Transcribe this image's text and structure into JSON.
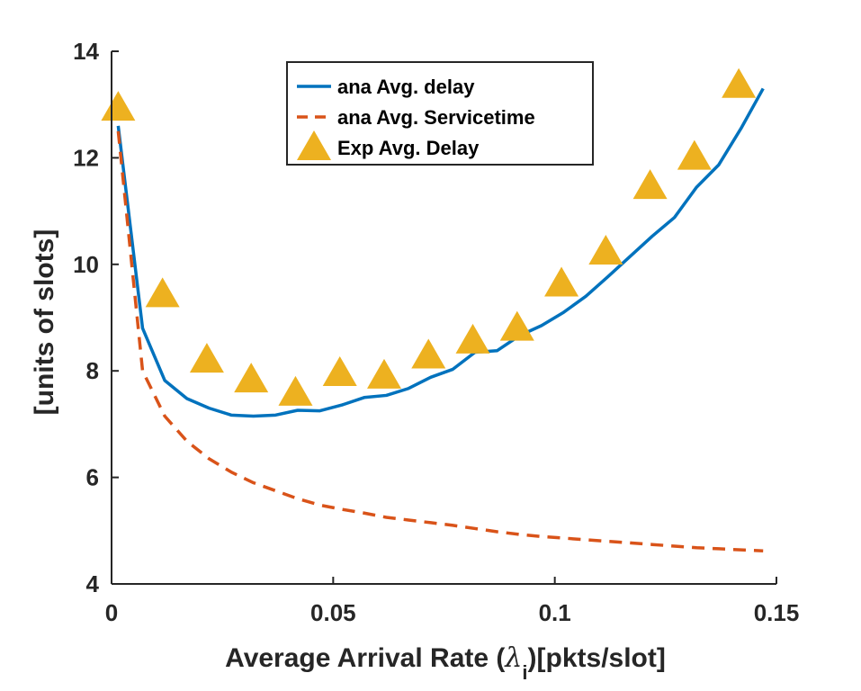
{
  "chart_data": {
    "type": "line",
    "title": "",
    "xlabel_prefix": "Average Arrival Rate (",
    "xlabel_symbol": "λ",
    "xlabel_subscript": "i",
    "xlabel_suffix": ")[pkts/slot]",
    "ylabel": "[units of slots]",
    "xlim": [
      0,
      0.15
    ],
    "ylim": [
      4,
      14
    ],
    "xticks": [
      0,
      0.05,
      0.1,
      0.15
    ],
    "xtick_labels": [
      "0",
      "0.05",
      "0.1",
      "0.15"
    ],
    "yticks": [
      4,
      6,
      8,
      10,
      12,
      14
    ],
    "ytick_labels": [
      "4",
      "6",
      "8",
      "10",
      "12",
      "14"
    ],
    "grid": false,
    "legend_position": "top-center",
    "series": [
      {
        "name": "ana Avg. delay",
        "style": "solid",
        "color": "#0072BD",
        "x": [
          0.0015,
          0.007,
          0.012,
          0.017,
          0.022,
          0.027,
          0.032,
          0.037,
          0.042,
          0.047,
          0.052,
          0.057,
          0.062,
          0.067,
          0.072,
          0.077,
          0.082,
          0.087,
          0.092,
          0.097,
          0.102,
          0.107,
          0.112,
          0.117,
          0.122,
          0.127,
          0.132,
          0.137,
          0.142,
          0.147
        ],
        "y": [
          12.6,
          8.8,
          7.82,
          7.48,
          7.3,
          7.17,
          7.15,
          7.17,
          7.26,
          7.25,
          7.36,
          7.5,
          7.54,
          7.67,
          7.88,
          8.03,
          8.35,
          8.38,
          8.66,
          8.85,
          9.1,
          9.4,
          9.77,
          10.15,
          10.53,
          10.88,
          11.45,
          11.87,
          12.55,
          13.3
        ]
      },
      {
        "name": "ana Avg. Servicetime",
        "style": "dashed",
        "color": "#D95319",
        "x": [
          0.0015,
          0.007,
          0.012,
          0.017,
          0.022,
          0.027,
          0.032,
          0.037,
          0.042,
          0.047,
          0.052,
          0.057,
          0.062,
          0.067,
          0.072,
          0.077,
          0.082,
          0.087,
          0.092,
          0.097,
          0.102,
          0.107,
          0.112,
          0.117,
          0.122,
          0.127,
          0.132,
          0.137,
          0.142,
          0.147
        ],
        "y": [
          12.5,
          8.0,
          7.15,
          6.68,
          6.35,
          6.1,
          5.9,
          5.75,
          5.6,
          5.48,
          5.4,
          5.33,
          5.25,
          5.2,
          5.15,
          5.1,
          5.04,
          4.98,
          4.93,
          4.89,
          4.86,
          4.83,
          4.8,
          4.77,
          4.74,
          4.71,
          4.68,
          4.66,
          4.64,
          4.62
        ]
      },
      {
        "name": "Exp Avg. Delay",
        "style": "triangle",
        "color": "#EDB120",
        "x": [
          0.0015,
          0.0115,
          0.0215,
          0.0315,
          0.0415,
          0.0515,
          0.0615,
          0.0715,
          0.0815,
          0.0915,
          0.1015,
          0.1115,
          0.1215,
          0.1315,
          0.1415
        ],
        "y": [
          12.95,
          9.45,
          8.22,
          7.85,
          7.6,
          7.97,
          7.92,
          8.3,
          8.58,
          8.82,
          9.65,
          10.25,
          11.48,
          12.03,
          13.38
        ]
      }
    ]
  }
}
